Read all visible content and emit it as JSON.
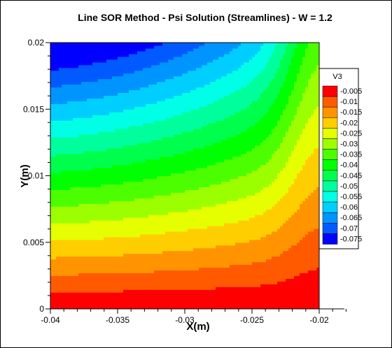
{
  "chart_data": {
    "type": "contour",
    "title": "Line SOR Method - Psi Solution (Streamlines) - W = 1.2",
    "xlabel": "X(m)",
    "ylabel": "Y(m)",
    "xlim": [
      -0.04,
      -0.02
    ],
    "ylim": [
      0,
      0.02
    ],
    "x_ticks": [
      "-0.04",
      "-0.035",
      "-0.03",
      "-0.025",
      "-0.02"
    ],
    "y_ticks": [
      "0",
      "0.005",
      "0.01",
      "0.015",
      "0.02"
    ],
    "variable": "V3",
    "legend_position": "right",
    "levels": [
      {
        "label": "-0.005",
        "value": -0.005,
        "color": "#ff0000"
      },
      {
        "label": "-0.01",
        "value": -0.01,
        "color": "#ff5a00"
      },
      {
        "label": "-0.015",
        "value": -0.015,
        "color": "#ff9400"
      },
      {
        "label": "-0.02",
        "value": -0.02,
        "color": "#ffce00"
      },
      {
        "label": "-0.025",
        "value": -0.025,
        "color": "#e6ff00"
      },
      {
        "label": "-0.03",
        "value": -0.03,
        "color": "#9cff00"
      },
      {
        "label": "-0.035",
        "value": -0.035,
        "color": "#4cff00"
      },
      {
        "label": "-0.04",
        "value": -0.04,
        "color": "#00ff00"
      },
      {
        "label": "-0.045",
        "value": -0.045,
        "color": "#00ff4c"
      },
      {
        "label": "-0.05",
        "value": -0.05,
        "color": "#00ff9c"
      },
      {
        "label": "-0.055",
        "value": -0.055,
        "color": "#00ffe6"
      },
      {
        "label": "-0.06",
        "value": -0.06,
        "color": "#00ceff"
      },
      {
        "label": "-0.065",
        "value": -0.065,
        "color": "#0094ff"
      },
      {
        "label": "-0.07",
        "value": -0.07,
        "color": "#005aff"
      },
      {
        "label": "-0.075",
        "value": -0.075,
        "color": "#0000ff"
      }
    ]
  }
}
